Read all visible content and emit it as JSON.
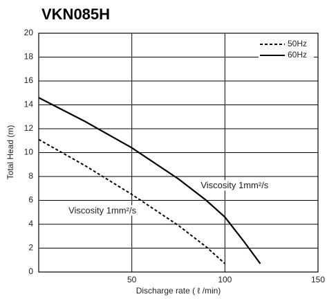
{
  "chart_data": {
    "type": "line",
    "title": "VKN085H",
    "x_label": "Discharge rate ( ℓ /min)",
    "y_label": "Total Head (m)",
    "xlim": [
      0,
      150
    ],
    "xticks": [
      50,
      100,
      150
    ],
    "ylim": [
      0,
      20
    ],
    "yticks": [
      0,
      2,
      4,
      6,
      8,
      10,
      12,
      14,
      16,
      18,
      20
    ],
    "grid": true,
    "legend": "upper right",
    "series": [
      {
        "name": "50Hz",
        "color": "#000000",
        "dash": true,
        "x": [
          0,
          25,
          50,
          75,
          90,
          100
        ],
        "values": [
          11.1,
          8.9,
          6.5,
          3.9,
          2.1,
          0.7
        ]
      },
      {
        "name": "60Hz",
        "color": "#000000",
        "dash": false,
        "x": [
          0,
          25,
          50,
          75,
          90,
          100,
          110,
          119
        ],
        "values": [
          14.6,
          12.6,
          10.4,
          7.8,
          6.0,
          4.6,
          2.6,
          0.7
        ]
      }
    ],
    "annotations": [
      {
        "text": "Viscosity 1mm²/s",
        "x": 87,
        "y": 7.2
      },
      {
        "text": "Viscosity 1mm²/s",
        "x": 16,
        "y": 5.1
      }
    ]
  }
}
